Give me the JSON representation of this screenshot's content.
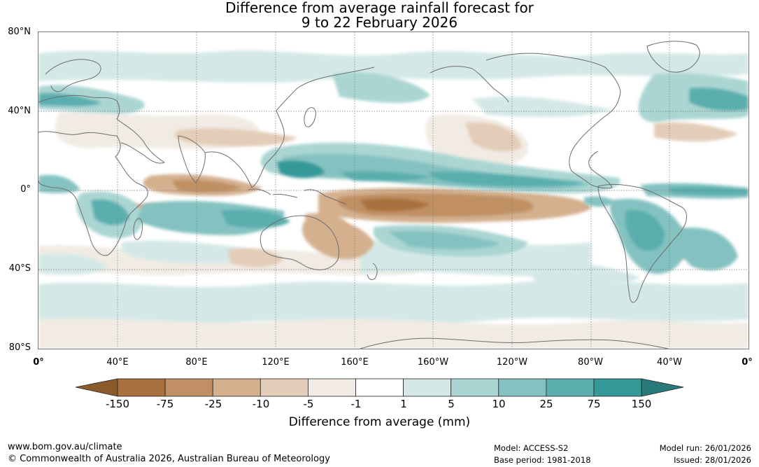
{
  "title": {
    "line1": "Difference from average rainfall forecast for",
    "line2": "9 to 22 February 2026"
  },
  "axes": {
    "lat_labels": [
      "80°N",
      "40°N",
      "0°",
      "40°S",
      "80°S"
    ],
    "lon_labels": [
      "0°",
      "40°E",
      "80°E",
      "120°E",
      "160°E",
      "160°W",
      "120°W",
      "80°W",
      "40°W",
      "0°"
    ]
  },
  "legend": {
    "title": "Difference from average (mm)",
    "tick_labels": [
      "-150",
      "-75",
      "-25",
      "-10",
      "-5",
      "-1",
      "1",
      "5",
      "10",
      "25",
      "75",
      "150"
    ],
    "colors": {
      "brown_extend": "#8b5a2b",
      "brown_1": "#a8713e",
      "brown_2": "#c09064",
      "brown_3": "#d4b08f",
      "brown_4": "#e3cdb8",
      "brown_5": "#f1ebe4",
      "neutral": "#ffffff",
      "teal_1": "#d4e9e7",
      "teal_2": "#aad5d3",
      "teal_3": "#84c2c1",
      "teal_4": "#5aaeae",
      "teal_5": "#35999a",
      "teal_extend": "#287a7a"
    }
  },
  "footer": {
    "website": "www.bom.gov.au/climate",
    "copyright": "© Commonwealth of Australia 2026, Australian Bureau of Meteorology",
    "model": "Model: ACCESS-S2",
    "base_period": "Base period: 1981-2018",
    "model_run": "Model run: 26/01/2026",
    "issued": "Issued: 28/01/2026"
  }
}
